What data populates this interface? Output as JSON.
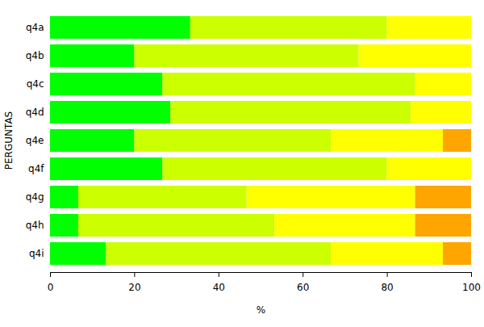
{
  "chart_data": {
    "type": "bar",
    "orientation": "horizontal",
    "stacked": true,
    "xlabel": "%",
    "ylabel": "PERGUNTAS",
    "categories": [
      "q4a",
      "q4b",
      "q4c",
      "q4d",
      "q4e",
      "q4f",
      "q4g",
      "q4h",
      "q4i"
    ],
    "series": [
      {
        "color": "#00ff00",
        "values": [
          33.3,
          20,
          26.7,
          28.6,
          20,
          26.7,
          6.7,
          6.7,
          13.3
        ]
      },
      {
        "color": "#ccff00",
        "values": [
          46.7,
          53.3,
          60,
          57.1,
          46.7,
          53.3,
          40,
          46.6,
          53.4
        ]
      },
      {
        "color": "#ffff00",
        "values": [
          20,
          26.7,
          13.3,
          14.3,
          26.6,
          20,
          40,
          33.4,
          26.6
        ]
      },
      {
        "color": "#ffa500",
        "values": [
          0,
          0,
          0,
          0,
          6.7,
          0,
          13.3,
          13.3,
          6.7
        ]
      }
    ],
    "xlim": [
      0,
      100
    ],
    "xticks": [
      0,
      20,
      40,
      60,
      80,
      100
    ],
    "grid": false
  }
}
